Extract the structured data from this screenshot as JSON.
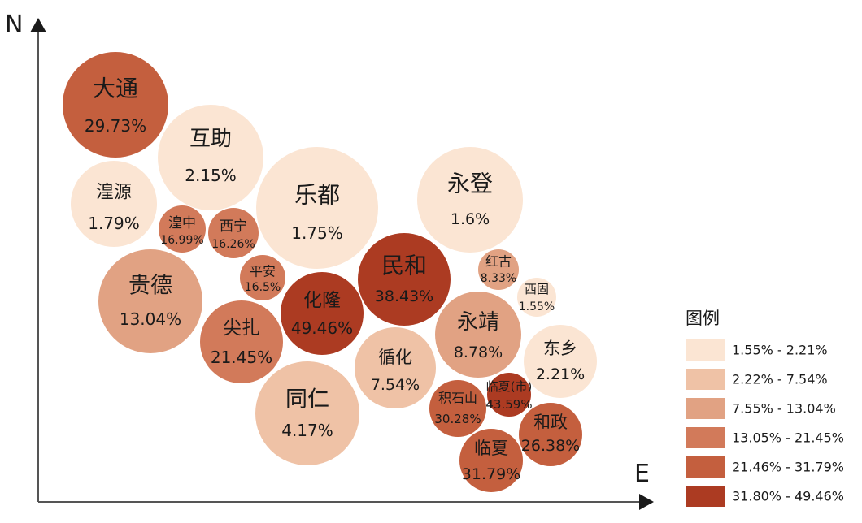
{
  "chart_data": {
    "type": "bubble",
    "x_axis_label": "E",
    "y_axis_label": "N",
    "legend": {
      "title": "图例",
      "placement": "right",
      "classes": [
        {
          "range": "1.55% - 2.21%",
          "color": "#fbe5d3"
        },
        {
          "range": "2.22% - 7.54%",
          "color": "#efc2a6"
        },
        {
          "range": "7.55% - 13.04%",
          "color": "#e1a283"
        },
        {
          "range": "13.05% - 21.45%",
          "color": "#d27a5a"
        },
        {
          "range": "21.46% - 31.79%",
          "color": "#c45f3e"
        },
        {
          "range": "31.80% - 49.46%",
          "color": "#ac3b22"
        }
      ]
    },
    "bubbles": [
      {
        "name": "大通",
        "value": "29.73%",
        "class": 4
      },
      {
        "name": "互助",
        "value": "2.15%",
        "class": 0
      },
      {
        "name": "湟源",
        "value": "1.79%",
        "class": 0
      },
      {
        "name": "湟中",
        "value": "16.99%",
        "class": 3
      },
      {
        "name": "西宁",
        "value": "16.26%",
        "class": 3
      },
      {
        "name": "乐都",
        "value": "1.75%",
        "class": 0
      },
      {
        "name": "永登",
        "value": "1.6%",
        "class": 0
      },
      {
        "name": "平安",
        "value": "16.5%",
        "class": 3
      },
      {
        "name": "民和",
        "value": "38.43%",
        "class": 5
      },
      {
        "name": "贵德",
        "value": "13.04%",
        "class": 2
      },
      {
        "name": "化隆",
        "value": "49.46%",
        "class": 5
      },
      {
        "name": "尖扎",
        "value": "21.45%",
        "class": 3
      },
      {
        "name": "红古",
        "value": "8.33%",
        "class": 2
      },
      {
        "name": "西固",
        "value": "1.55%",
        "class": 0
      },
      {
        "name": "永靖",
        "value": "8.78%",
        "class": 2
      },
      {
        "name": "东乡",
        "value": "2.21%",
        "class": 0
      },
      {
        "name": "循化",
        "value": "7.54%",
        "class": 1
      },
      {
        "name": "同仁",
        "value": "4.17%",
        "class": 1
      },
      {
        "name": "积石山",
        "value": "30.28%",
        "class": 4
      },
      {
        "name": "临夏(市)",
        "value": "43.59%",
        "class": 5
      },
      {
        "name": "和政",
        "value": "26.38%",
        "class": 4
      },
      {
        "name": "临夏",
        "value": "31.79%",
        "class": 4
      }
    ]
  }
}
